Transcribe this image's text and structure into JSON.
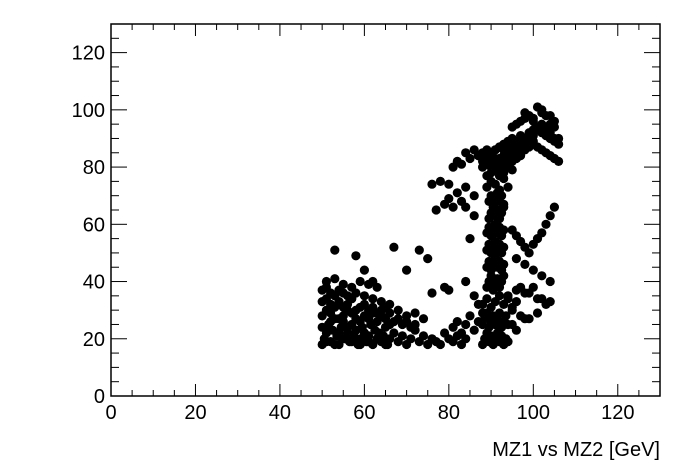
{
  "chart_data": {
    "type": "scatter",
    "title": "",
    "xlabel": "MZ1 vs MZ2 [GeV]",
    "ylabel": "",
    "xlim": [
      0,
      130
    ],
    "ylim": [
      0,
      130
    ],
    "x_ticks": [
      0,
      20,
      40,
      60,
      80,
      100,
      120
    ],
    "y_ticks": [
      0,
      20,
      40,
      60,
      80,
      100,
      120
    ],
    "x_tick_labels": [
      "0",
      "20",
      "40",
      "60",
      "80",
      "100",
      "120"
    ],
    "y_tick_labels": [
      "0",
      "20",
      "40",
      "60",
      "80",
      "100",
      "120"
    ],
    "grid": false,
    "legend": "none",
    "marker_color": "#000000",
    "frame_color": "#000000",
    "series": [
      {
        "x": [
          50,
          50.5,
          51,
          51.5,
          52,
          52.5,
          53,
          53.5,
          54,
          54.5,
          55,
          55.5,
          56,
          56.5,
          57,
          57.5,
          58,
          58.5,
          59,
          59.5,
          60,
          60.5,
          61,
          61.5,
          62,
          62.5,
          63,
          63.5,
          64,
          64.5,
          65,
          65.5,
          66,
          67,
          68,
          69,
          70,
          71,
          72,
          73,
          74,
          75,
          76,
          77,
          78,
          79,
          80,
          81,
          82,
          83,
          84,
          50,
          51,
          52,
          53,
          54,
          55,
          56,
          57,
          58,
          59,
          60,
          61,
          62,
          63,
          64,
          65,
          66,
          67,
          68,
          69,
          70,
          71,
          72,
          50,
          51,
          52,
          53,
          54,
          55,
          56,
          57,
          58,
          59,
          60,
          61,
          62,
          63,
          64,
          65,
          66,
          68,
          70,
          72,
          74,
          50,
          51,
          52,
          53,
          54,
          55,
          56,
          57,
          58,
          60,
          62,
          64,
          66,
          51,
          53,
          55,
          57,
          59,
          61,
          63,
          50,
          52,
          54,
          56,
          58,
          60,
          51,
          53,
          55,
          57,
          59,
          61,
          63,
          65,
          53,
          58,
          60,
          62,
          67,
          70,
          73,
          75,
          76,
          79,
          80,
          84,
          86,
          87,
          88,
          88.5,
          89,
          89.5,
          90,
          90.5,
          91,
          91.5,
          92,
          92.5,
          93,
          93.5,
          94,
          88,
          88.5,
          89,
          89.5,
          90,
          90.5,
          91,
          91.5,
          92,
          92.5,
          93,
          93.5,
          94,
          88,
          89,
          90,
          91,
          92,
          93,
          94,
          95,
          96,
          89,
          89.5,
          90,
          90.5,
          91,
          91.5,
          92,
          92.5,
          93,
          89,
          89.5,
          90,
          90.5,
          91,
          91.5,
          92,
          92.5,
          93,
          89,
          89.5,
          90,
          90.5,
          91,
          91.5,
          92,
          92.5,
          93,
          89,
          89.5,
          90,
          90.5,
          91,
          91.5,
          92,
          92.5,
          93,
          89.5,
          90,
          90.5,
          91,
          91.5,
          92,
          92.5,
          93,
          89.5,
          90,
          90.5,
          91,
          91.5,
          92,
          92.5,
          93,
          89,
          90,
          91,
          92,
          93,
          94,
          89,
          90,
          91,
          92,
          93,
          94,
          95,
          88,
          89,
          90,
          91,
          92,
          93,
          94,
          95,
          96,
          97,
          87,
          88,
          89,
          90,
          91,
          92,
          93,
          94,
          95,
          96,
          97,
          98,
          99,
          100,
          88,
          89,
          90,
          91,
          92,
          93,
          94,
          95,
          96,
          97,
          98,
          99,
          100,
          101,
          102,
          103,
          104,
          105,
          90,
          91,
          92,
          93,
          94,
          95,
          96,
          97,
          98,
          99,
          100,
          101,
          102,
          103,
          104,
          105,
          106,
          92,
          93,
          94,
          95,
          96,
          97,
          98,
          99,
          100,
          101,
          102,
          103,
          104,
          105,
          106,
          95,
          96,
          97,
          98,
          99,
          100,
          101,
          102,
          103,
          104,
          105,
          106,
          98,
          100,
          102,
          104,
          105,
          81,
          82,
          83,
          84,
          85,
          86,
          87,
          78,
          80,
          82,
          84,
          86,
          77,
          79,
          81,
          83,
          76,
          80,
          84,
          85,
          86,
          95,
          96,
          97,
          98,
          99,
          100,
          101,
          102,
          103,
          104,
          105,
          96,
          98,
          100,
          102,
          104,
          97,
          99,
          101,
          103,
          95,
          97,
          99,
          101,
          104,
          94,
          96,
          98,
          100,
          102,
          95,
          96,
          98,
          81,
          82,
          83,
          84,
          85,
          86,
          87,
          88
        ],
        "y": [
          18,
          20,
          22,
          25,
          19,
          23,
          27,
          21,
          18,
          24,
          26,
          20,
          22,
          19,
          25,
          21,
          23,
          18,
          20,
          24,
          22,
          19,
          21,
          25,
          18,
          23,
          20,
          22,
          19,
          21,
          24,
          18,
          20,
          22,
          19,
          21,
          18,
          20,
          23,
          19,
          21,
          18,
          20,
          19,
          18,
          22,
          20,
          19,
          21,
          18,
          20,
          28,
          30,
          29,
          31,
          27,
          28,
          30,
          29,
          27,
          26,
          28,
          27,
          29,
          26,
          28,
          27,
          25,
          26,
          27,
          25,
          26,
          24,
          25,
          33,
          34,
          32,
          35,
          33,
          31,
          32,
          34,
          30,
          31,
          32,
          30,
          31,
          29,
          30,
          31,
          29,
          30,
          28,
          29,
          27,
          37,
          38,
          36,
          35,
          37,
          36,
          35,
          34,
          36,
          35,
          34,
          33,
          32,
          40,
          41,
          39,
          38,
          40,
          39,
          38,
          24,
          26,
          22,
          24,
          23,
          22,
          19,
          18,
          20,
          19,
          18,
          19,
          20,
          18,
          51,
          49,
          44,
          40,
          52,
          44,
          51,
          48,
          36,
          38,
          37,
          40,
          35,
          32,
          18,
          20,
          22,
          19,
          21,
          18,
          20,
          22,
          19,
          21,
          18,
          20,
          19,
          25,
          27,
          29,
          24,
          26,
          28,
          25,
          27,
          29,
          24,
          26,
          28,
          25,
          32,
          34,
          31,
          33,
          35,
          32,
          34,
          31,
          33,
          38,
          40,
          42,
          37,
          39,
          41,
          38,
          40,
          42,
          45,
          47,
          44,
          46,
          48,
          45,
          47,
          44,
          46,
          51,
          53,
          50,
          52,
          54,
          51,
          53,
          50,
          52,
          57,
          59,
          56,
          58,
          60,
          57,
          59,
          56,
          58,
          62,
          64,
          66,
          63,
          65,
          62,
          64,
          66,
          68,
          70,
          67,
          69,
          71,
          68,
          70,
          67,
          73,
          75,
          74,
          72,
          76,
          73,
          77,
          78,
          79,
          77,
          78,
          80,
          79,
          80,
          81,
          82,
          83,
          81,
          82,
          84,
          83,
          85,
          84,
          84,
          85,
          86,
          85,
          86,
          87,
          86,
          87,
          88,
          87,
          88,
          89,
          88,
          89,
          82,
          83,
          84,
          86,
          87,
          88,
          89,
          90,
          89,
          91,
          90,
          92,
          91,
          93,
          92,
          91,
          90,
          89,
          80,
          81,
          83,
          84,
          85,
          87,
          88,
          89,
          90,
          91,
          93,
          94,
          95,
          93,
          92,
          90,
          88,
          78,
          79,
          80,
          82,
          83,
          85,
          86,
          87,
          88,
          87,
          86,
          85,
          84,
          83,
          82,
          94,
          95,
          96,
          97,
          98,
          96,
          101,
          99,
          98,
          95,
          94,
          90,
          99,
          97,
          100,
          98,
          96,
          80,
          82,
          81,
          85,
          83,
          86,
          84,
          75,
          74,
          71,
          73,
          70,
          65,
          67,
          66,
          68,
          74,
          69,
          66,
          55,
          63,
          58,
          56,
          54,
          52,
          50,
          53,
          55,
          57,
          60,
          63,
          66,
          48,
          46,
          44,
          42,
          40,
          38,
          36,
          34,
          32,
          30,
          28,
          27,
          29,
          33,
          35,
          37,
          36,
          38,
          34,
          25,
          23,
          27,
          24,
          26,
          22,
          25,
          28,
          23,
          26,
          29
        ]
      }
    ]
  }
}
